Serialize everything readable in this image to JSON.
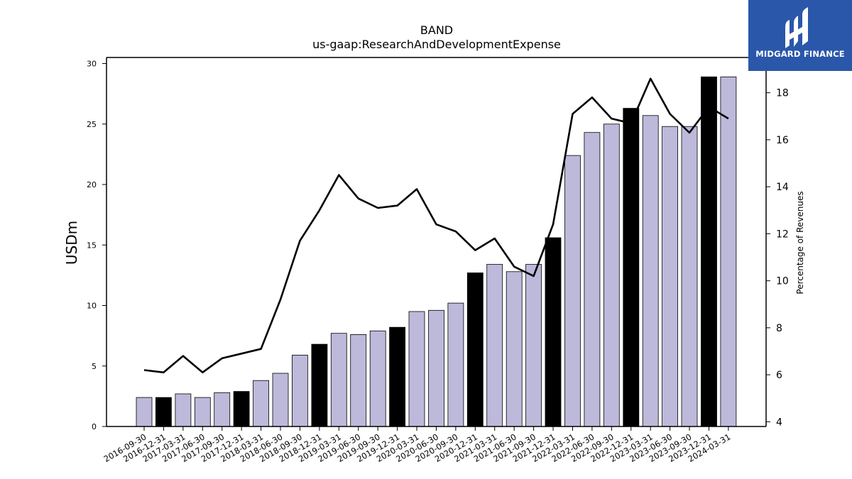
{
  "brand": {
    "name": "MIDGARD FINANCE",
    "icon": "midgard-logo-icon",
    "color": "#2a57aa"
  },
  "chart_data": {
    "type": "bar",
    "title": "BAND",
    "subtitle": "us-gaap:ResearchAndDevelopmentExpense",
    "ylabel": "USDm",
    "y2label": "Percentage of Revenues",
    "ylim": [
      0,
      30.5
    ],
    "y2lim": [
      3.8,
      19.5
    ],
    "yticks": [
      0,
      5,
      10,
      15,
      20,
      25,
      30
    ],
    "y2ticks": [
      4,
      6,
      8,
      10,
      12,
      14,
      16,
      18
    ],
    "categories": [
      "2016-09-30",
      "2016-12-31",
      "2017-03-31",
      "2017-06-30",
      "2017-09-30",
      "2017-12-31",
      "2018-03-31",
      "2018-06-30",
      "2018-09-30",
      "2018-12-31",
      "2019-03-31",
      "2019-06-30",
      "2019-09-30",
      "2019-12-31",
      "2020-03-31",
      "2020-06-30",
      "2020-09-30",
      "2020-12-31",
      "2021-03-31",
      "2021-06-30",
      "2021-09-30",
      "2021-12-31",
      "2022-03-31",
      "2022-06-30",
      "2022-09-30",
      "2022-12-31",
      "2023-03-31",
      "2023-06-30",
      "2023-09-30",
      "2023-12-31",
      "2024-03-31"
    ],
    "series": [
      {
        "kind": "bar",
        "axis": "left",
        "values": [
          2.4,
          2.4,
          2.7,
          2.4,
          2.8,
          2.9,
          3.8,
          4.4,
          5.9,
          6.8,
          7.7,
          7.6,
          7.9,
          8.2,
          9.5,
          9.6,
          10.2,
          12.7,
          13.4,
          12.8,
          13.4,
          15.6,
          22.4,
          24.3,
          25.0,
          26.3,
          25.7,
          24.8,
          24.8,
          28.9,
          28.9
        ],
        "highlight": [
          false,
          true,
          false,
          false,
          false,
          true,
          false,
          false,
          false,
          true,
          false,
          false,
          false,
          true,
          false,
          false,
          false,
          true,
          false,
          false,
          false,
          true,
          false,
          false,
          false,
          true,
          false,
          false,
          false,
          true,
          false
        ]
      },
      {
        "kind": "line",
        "axis": "right",
        "values": [
          6.2,
          6.1,
          6.8,
          6.1,
          6.7,
          6.9,
          7.1,
          9.2,
          11.7,
          13.0,
          14.5,
          13.5,
          13.1,
          13.2,
          13.9,
          12.4,
          12.1,
          11.3,
          11.8,
          10.6,
          10.2,
          12.4,
          17.1,
          17.8,
          16.9,
          16.7,
          18.6,
          17.1,
          16.3,
          17.4,
          16.9
        ]
      }
    ],
    "colors": {
      "bar": "#bdb9da",
      "bar_highlight": "#000000",
      "line": "#000000"
    },
    "grid": false,
    "legend": "none"
  }
}
